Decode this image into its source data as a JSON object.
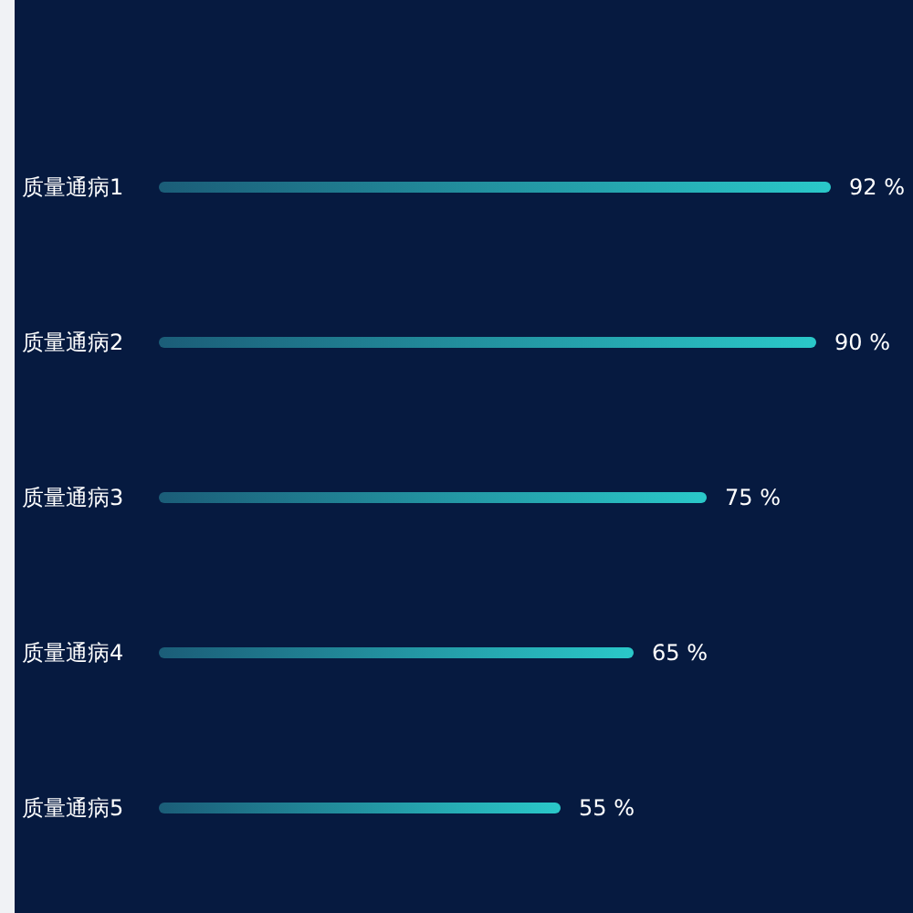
{
  "chart_data": {
    "type": "bar",
    "orientation": "horizontal",
    "categories": [
      "质量通病1",
      "质量通病2",
      "质量通病3",
      "质量通病4",
      "质量通病5"
    ],
    "values": [
      92,
      90,
      75,
      65,
      55
    ],
    "value_labels": [
      "92 %",
      "90 %",
      "75 %",
      "65 %",
      "55 %"
    ],
    "color": "#2ac8c9"
  }
}
